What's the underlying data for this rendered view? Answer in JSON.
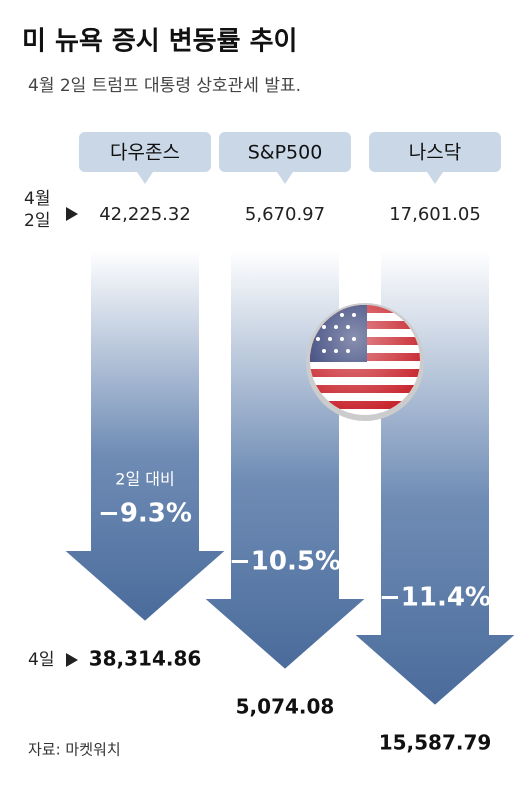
{
  "chart_data": {
    "type": "arrow",
    "title": "미 뉴욕 증시 변동률 추이",
    "subtitle": "4월 2일 트럼프 대통령 상호관세 발표.",
    "categories": [
      "다우존스",
      "S&P500",
      "나스닥"
    ],
    "start_label": "4월 2일",
    "end_label": "4일",
    "start_values": [
      42225.32,
      5670.97,
      17601.05
    ],
    "start_value_labels": [
      "42,225.32",
      "5,670.97",
      "17,601.05"
    ],
    "end_values": [
      38314.86,
      5074.08,
      15587.79
    ],
    "end_value_labels": [
      "38,314.86",
      "5,074.08",
      "15,587.79"
    ],
    "change_note": "2일 대비",
    "values": [
      -9.3,
      -10.5,
      -11.4
    ],
    "value_labels": [
      "−9.3%",
      "−10.5%",
      "−11.4%"
    ],
    "ylim": [
      0,
      -12
    ],
    "color": "#4a6b9b",
    "source": "자료: 마켓워치"
  }
}
